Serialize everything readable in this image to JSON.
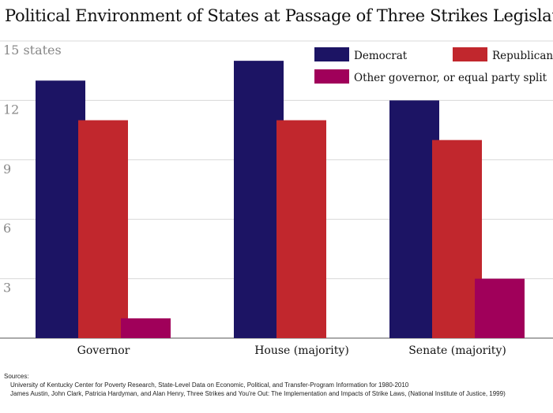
{
  "chart_data": {
    "type": "bar",
    "title": "Political Environment of States at Passage of Three Strikes Legislation",
    "categories": [
      "Governor",
      "House (majority)",
      "Senate (majority)"
    ],
    "series": [
      {
        "name": "Democrat",
        "color": "#1c1464",
        "values": [
          13,
          14,
          12
        ]
      },
      {
        "name": "Republican",
        "color": "#c1272d",
        "values": [
          11,
          11,
          10
        ]
      },
      {
        "name": "Other governor, or equal party split",
        "color": "#a0005a",
        "values": [
          1,
          0,
          3
        ]
      }
    ],
    "ylim": [
      0,
      15
    ],
    "yticks": [
      3,
      6,
      9,
      12,
      15
    ],
    "ytick_labels": [
      "3",
      "6",
      "9",
      "12",
      "15 states"
    ],
    "grid": true,
    "legend_placement": "top-right"
  },
  "sources": {
    "label": "Sources:",
    "lines": [
      "University of Kentucky Center for Poverty Research, State-Level Data on Economic, Political, and Transfer-Program Information for 1980-2010",
      "James Austin, John Clark, Patricia Hardyman, and Alan Henry, Three Strikes and You're Out: The Implementation and Impacts of Strike Laws, (National Institute of Justice, 1999)"
    ]
  }
}
